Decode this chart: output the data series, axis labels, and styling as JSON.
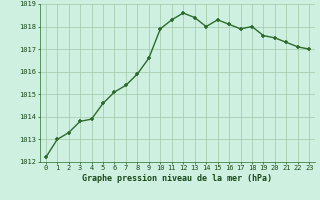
{
  "x": [
    0,
    1,
    2,
    3,
    4,
    5,
    6,
    7,
    8,
    9,
    10,
    11,
    12,
    13,
    14,
    15,
    16,
    17,
    18,
    19,
    20,
    21,
    22,
    23
  ],
  "y": [
    1012.2,
    1013.0,
    1013.3,
    1013.8,
    1013.9,
    1014.6,
    1015.1,
    1015.4,
    1015.9,
    1016.6,
    1017.9,
    1018.3,
    1018.6,
    1018.4,
    1018.0,
    1018.3,
    1018.1,
    1017.9,
    1018.0,
    1017.6,
    1017.5,
    1017.3,
    1017.1,
    1017.0
  ],
  "line_color": "#2d6a2d",
  "marker_color": "#2d6a2d",
  "bg_color": "#cef0e0",
  "grid_color": "#a0c8a8",
  "xlabel": "Graphe pression niveau de la mer (hPa)",
  "xlabel_color": "#1a4a1a",
  "tick_color": "#1a4a1a",
  "ylim": [
    1012,
    1019
  ],
  "xlim_min": -0.5,
  "xlim_max": 23.5,
  "yticks": [
    1012,
    1013,
    1014,
    1015,
    1016,
    1017,
    1018,
    1019
  ],
  "xticks": [
    0,
    1,
    2,
    3,
    4,
    5,
    6,
    7,
    8,
    9,
    10,
    11,
    12,
    13,
    14,
    15,
    16,
    17,
    18,
    19,
    20,
    21,
    22,
    23
  ],
  "line_width": 1.0,
  "marker_size": 3.0,
  "fig_bg": "#cef0e0"
}
